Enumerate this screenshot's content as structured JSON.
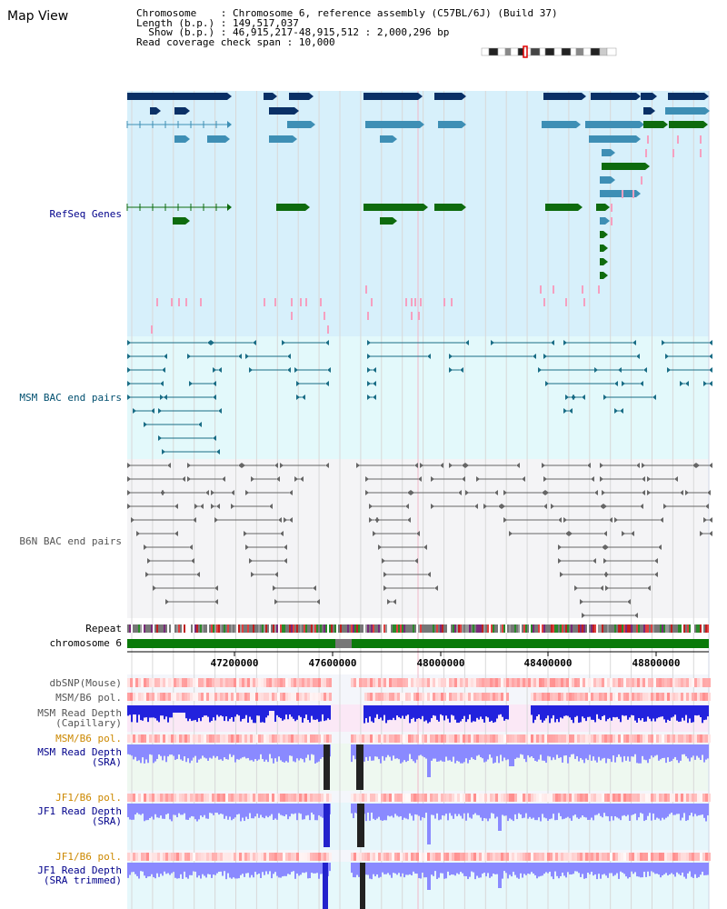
{
  "header": {
    "title": "Map View",
    "chromosome_key": "Chromosome",
    "chromosome_value": "Chromosome 6, reference assembly (C57BL/6J) (Build 37)",
    "length_key": "Length (b.p.)",
    "length_value": "149,517,037",
    "show_key": "Show (b.p.)",
    "show_value": "46,915,217-48,915,512 : 2,000,296 bp",
    "coverage_key": "Read coverage check span",
    "coverage_value": "10,000"
  },
  "tracks": {
    "refseq": "RefSeq Genes",
    "msm_bac": "MSM BAC end pairs",
    "b6n_bac": "B6N BAC end pairs",
    "repeat": "Repeat",
    "chromosome": "chromosome 6",
    "dbsnp": "dbSNP(Mouse)",
    "msm_b6_pol_1": "MSM/B6 pol.",
    "msm_depth_cap": "MSM Read Depth\n(Capillary)",
    "msm_b6_pol_2": "MSM/B6 pol.",
    "msm_depth_sra": "MSM Read Depth\n(SRA)",
    "jf1_b6_pol_1": "JF1/B6 pol.",
    "jf1_depth_sra": "JF1 Read Depth\n(SRA)",
    "jf1_b6_pol_2": "JF1/B6 pol.",
    "jf1_depth_trim": "JF1 Read Depth\n(SRA trimmed)"
  },
  "axis": {
    "ticks": [
      "47200000",
      "47600000",
      "48000000",
      "48400000",
      "48800000"
    ]
  },
  "colors": {
    "refseq_label": "#00008b",
    "msm_label": "#004f6f",
    "b6n_label": "#555555",
    "pol_label": "#cc8800",
    "refseq_bg": "#d7f0fb",
    "msm_bg": "#e3f9fb",
    "gene_dark": "#0a3066",
    "gene_mid": "#3e8fb5",
    "gene_green": "#0e6b0e",
    "chrom_green": "#0a7a0a",
    "depth_blue": "#2222dd",
    "depth_light": "#8a8aff"
  }
}
